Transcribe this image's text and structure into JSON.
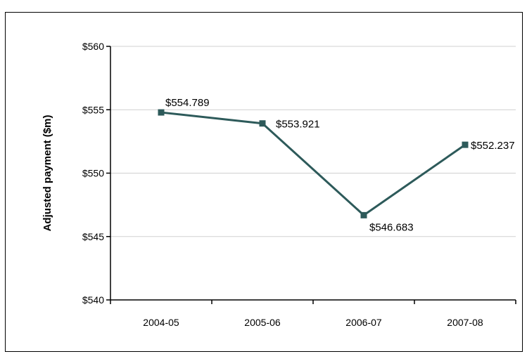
{
  "chart_data": {
    "type": "line",
    "title": "",
    "xlabel": "",
    "ylabel": "Adjusted payment ($m)",
    "categories": [
      "2004-05",
      "2005-06",
      "2006-07",
      "2007-08"
    ],
    "series": [
      {
        "values": [
          554.789,
          553.921,
          546.683,
          552.237
        ],
        "color": "#2d5a5a"
      }
    ],
    "data_labels": [
      "$554.789",
      "$553.921",
      "$546.683",
      "$552.237"
    ],
    "ylim": [
      540,
      560
    ],
    "yticks": [
      540,
      545,
      550,
      555,
      560
    ],
    "ytick_labels": [
      "$540",
      "$545",
      "$550",
      "$555",
      "$560"
    ],
    "grid": true,
    "marker": "square",
    "legend": "none"
  }
}
